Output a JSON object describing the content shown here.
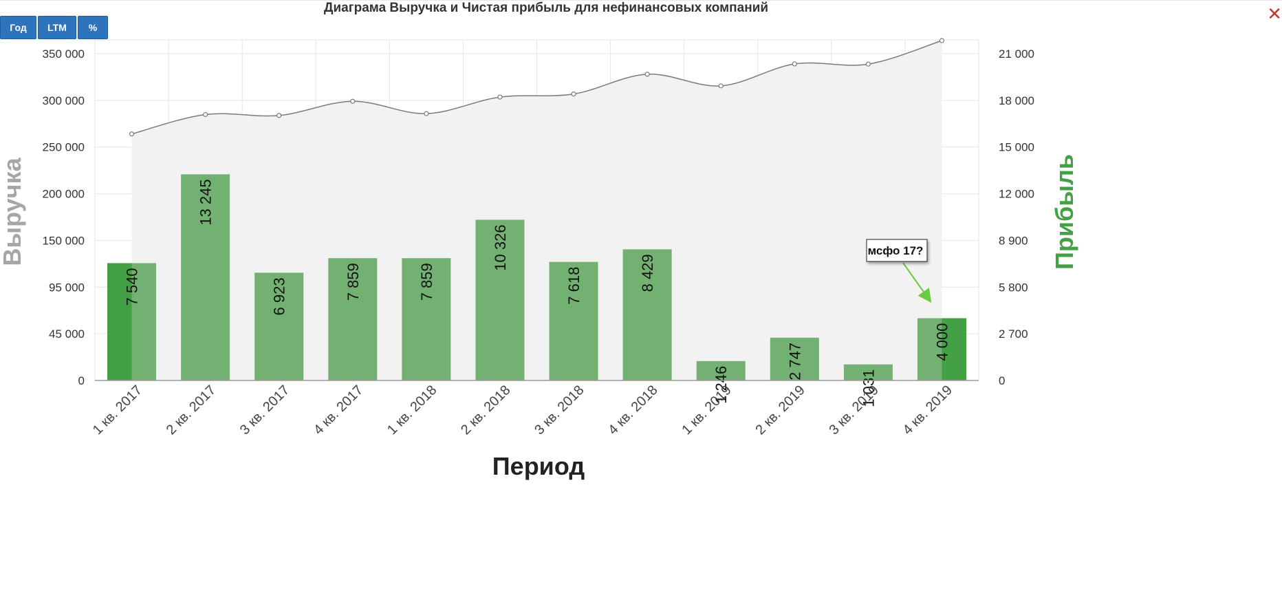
{
  "toolbar": {
    "buttons": [
      "Год",
      "LTM",
      "%"
    ]
  },
  "close_icon": "✕",
  "colors": {
    "bar": "#72b172",
    "bar_highlight": "#44a044",
    "line": "#7a7a7a",
    "area": "#f2f2f2",
    "revenue_title": "#a6a6a6",
    "profit_title": "#44a044",
    "button": "#2d74bd",
    "annotation_arrow": "#66cc44"
  },
  "chart_data": {
    "type": "bar",
    "title": "Диаграма Выручка и Чистая прибыль для нефинансовых компаний",
    "xlabel": "Период",
    "categories": [
      "1 кв. 2017",
      "2 кв. 2017",
      "3 кв. 2017",
      "4 кв. 2017",
      "1 кв. 2018",
      "2 кв. 2018",
      "3 кв. 2018",
      "4 кв. 2018",
      "1 кв. 2019",
      "2 кв. 2019",
      "3 кв. 2019",
      "4 кв. 2019"
    ],
    "left_axis": {
      "title": "Выручка",
      "ticks": [
        "0",
        "45 000",
        "95 000",
        "150 000",
        "200 000",
        "250 000",
        "300 000",
        "350 000"
      ]
    },
    "right_axis": {
      "title": "Прибыль",
      "ticks": [
        "0",
        "2 700",
        "5 800",
        "8 900",
        "12 000",
        "15 000",
        "18 000",
        "21 000"
      ]
    },
    "series": [
      {
        "name": "Выручка",
        "type": "area-spline",
        "values": [
          264000,
          284800,
          283800,
          299000,
          285800,
          303500,
          306800,
          328000,
          315500,
          339000,
          338800,
          364000
        ]
      },
      {
        "name": "Прибыль",
        "type": "bar",
        "values": [
          7540,
          13245,
          6923,
          7859,
          7859,
          10326,
          7618,
          8429,
          1246,
          2747,
          1031,
          4000
        ],
        "labels": [
          "7 540",
          "13 245",
          "6 923",
          "7 859",
          "7 859",
          "10 326",
          "7 618",
          "8 429",
          "1 246",
          "2 747",
          "1 031",
          "4 000"
        ]
      }
    ],
    "annotation": {
      "text": "мсфо 17?",
      "target_category": "4 кв. 2019"
    },
    "grid": true
  }
}
